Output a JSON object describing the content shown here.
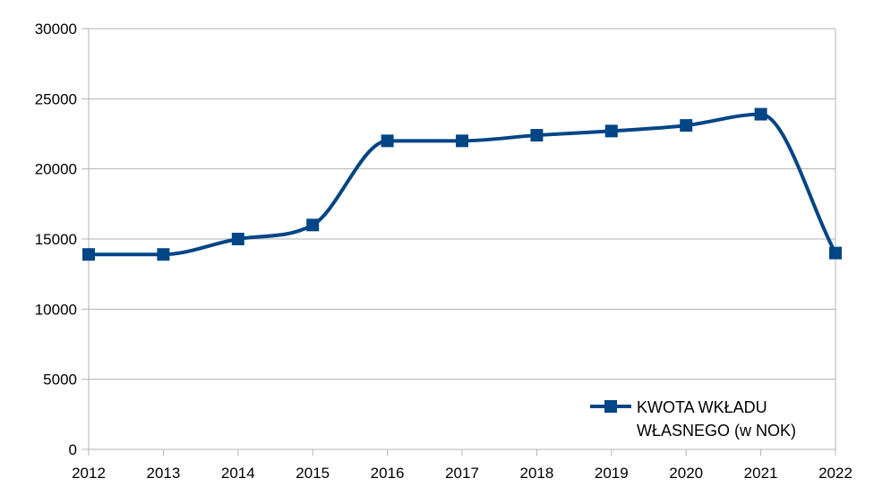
{
  "chart_data": {
    "type": "line",
    "title": "",
    "xlabel": "",
    "ylabel": "",
    "x": [
      "2012",
      "2013",
      "2014",
      "2015",
      "2016",
      "2017",
      "2018",
      "2019",
      "2020",
      "2021",
      "2022"
    ],
    "series": [
      {
        "name": "KWOTA WKŁADU WŁASNEGO (w NOK)",
        "legend_lines": [
          "KWOTA WKŁADU",
          "WŁASNEGO (w NOK)"
        ],
        "values": [
          13900,
          13900,
          15000,
          16000,
          22000,
          22000,
          22400,
          22700,
          23100,
          23900,
          14000
        ],
        "color": "#004586"
      }
    ],
    "ylim": [
      0,
      30000
    ],
    "yticks": [
      0,
      5000,
      10000,
      15000,
      20000,
      25000,
      30000
    ],
    "grid": true,
    "smooth": true,
    "marker": "square",
    "legend": "bottom-right"
  }
}
